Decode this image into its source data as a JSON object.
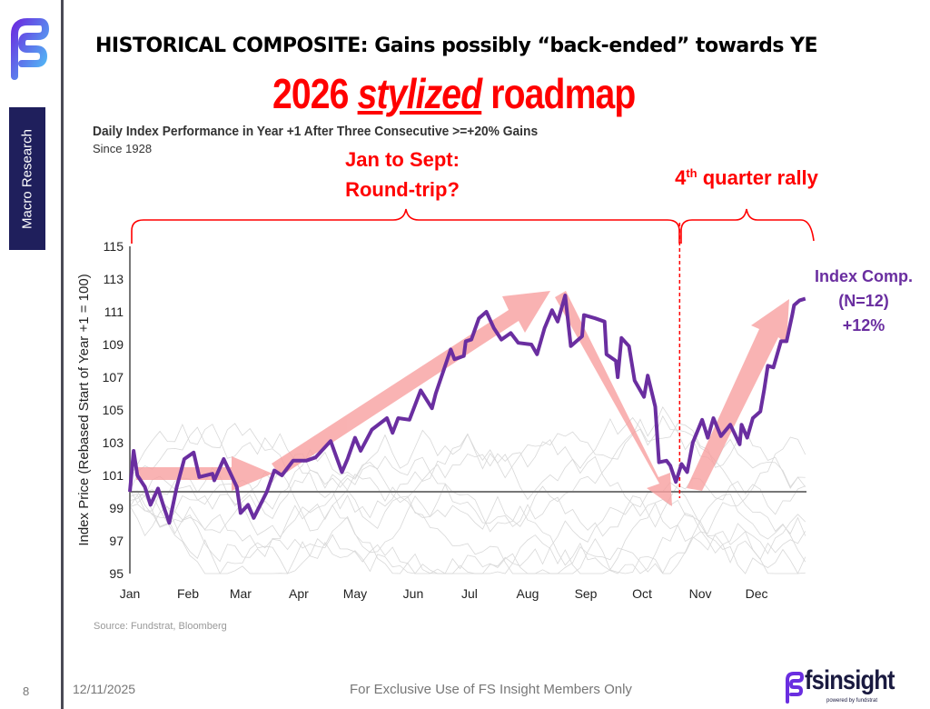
{
  "sidebar": {
    "label": "Macro Research",
    "logo": "fs-logo-icon"
  },
  "header": {
    "title": "HISTORICAL COMPOSITE: Gains possibly “back-ended” towards YE",
    "subtitle_pre": "2026 ",
    "subtitle_em": "stylized",
    "subtitle_post": " roadmap"
  },
  "annotations": {
    "phase1_line1": "Jan to Sept:",
    "phase1_line2": "Round-trip?",
    "phase2_pre": "4",
    "phase2_sup": "th",
    "phase2_post": " quarter rally",
    "series_label_1": "Index Comp.",
    "series_label_2": "(N=12)",
    "series_label_3": "+12%"
  },
  "footer": {
    "source": "Source: Fundstrat, Bloomberg",
    "page": "8",
    "date": "12/11/2025",
    "note": "For Exclusive Use of FS Insight Members Only",
    "brand": "fsinsight",
    "brand_tagline": "powered by fundstrat"
  },
  "colors": {
    "series": "#6a2ea0",
    "annotation": "#ff0000",
    "arrow": "#f8a0a0",
    "sidebar": "#1f1f5c"
  },
  "chart_data": {
    "type": "line",
    "title": "Daily Index Performance in Year +1 After Three Consecutive >=+20% Gains",
    "subtitle": "Since 1928",
    "ylabel": "Index Price (Rebased Start of Year +1 = 100)",
    "xlabel": "",
    "ylim": [
      95,
      115
    ],
    "yticks": [
      95,
      97,
      99,
      101,
      103,
      105,
      107,
      109,
      111,
      113,
      115
    ],
    "xticks": [
      "Jan",
      "Feb",
      "Mar",
      "Apr",
      "May",
      "Jun",
      "Jul",
      "Aug",
      "Sep",
      "Oct",
      "Nov",
      "Dec"
    ],
    "reference_line": 100,
    "marker_date": "10-21",
    "grid": false,
    "series": [
      {
        "name": "Index Comp. (N=12)",
        "x": [
          "01-01",
          "01-03",
          "01-05",
          "01-09",
          "01-12",
          "01-16",
          "01-19",
          "01-22",
          "01-26",
          "01-30",
          "02-04",
          "02-07",
          "02-14",
          "02-15",
          "02-20",
          "02-27",
          "03-01",
          "03-05",
          "03-08",
          "03-15",
          "03-19",
          "03-23",
          "03-29",
          "04-05",
          "04-10",
          "04-18",
          "04-24",
          "04-27",
          "05-01",
          "05-04",
          "05-10",
          "05-18",
          "05-21",
          "05-24",
          "05-30",
          "06-05",
          "06-11",
          "06-13",
          "06-21",
          "06-23",
          "06-28",
          "06-29",
          "07-02",
          "07-06",
          "07-10",
          "07-14",
          "07-18",
          "07-23",
          "07-27",
          "08-03",
          "08-06",
          "08-10",
          "08-14",
          "08-17",
          "08-21",
          "08-24",
          "08-30",
          "08-31",
          "09-06",
          "09-11",
          "09-12",
          "09-17",
          "09-18",
          "09-20",
          "09-24",
          "09-27",
          "10-02",
          "10-04",
          "10-08",
          "10-10",
          "10-14",
          "10-16",
          "10-19",
          "10-22",
          "10-25",
          "10-28",
          "11-02",
          "11-05",
          "11-08",
          "11-12",
          "11-17",
          "11-22",
          "11-23",
          "11-26",
          "11-29",
          "12-03",
          "12-05",
          "12-07",
          "12-10",
          "12-12",
          "12-14",
          "12-17",
          "12-20",
          "12-21",
          "12-24",
          "12-27"
        ],
        "y": [
          100.0,
          102.5,
          101.0,
          100.3,
          99.2,
          100.2,
          99.1,
          98.1,
          100.3,
          102.0,
          102.4,
          100.9,
          101.1,
          100.7,
          102.0,
          100.3,
          98.7,
          99.2,
          98.4,
          100.0,
          101.3,
          101.0,
          101.9,
          101.9,
          102.1,
          103.1,
          101.2,
          102.0,
          103.3,
          102.5,
          103.8,
          104.5,
          103.6,
          104.5,
          104.4,
          106.2,
          105.1,
          106.0,
          108.7,
          108.1,
          108.3,
          109.2,
          109.3,
          110.6,
          111.0,
          110.0,
          109.3,
          109.7,
          109.1,
          109.0,
          108.4,
          110.0,
          111.1,
          110.4,
          112.0,
          108.9,
          109.5,
          110.8,
          110.6,
          110.4,
          108.4,
          108.0,
          107.0,
          109.4,
          108.9,
          106.8,
          105.8,
          107.1,
          105.2,
          101.8,
          101.9,
          101.6,
          100.6,
          101.7,
          101.2,
          103.0,
          104.4,
          103.3,
          104.5,
          103.4,
          104.1,
          102.9,
          104.1,
          103.3,
          104.5,
          104.9,
          106.2,
          107.7,
          107.6,
          108.4,
          109.2,
          109.2,
          110.8,
          111.4,
          111.7,
          111.8
        ]
      }
    ]
  }
}
